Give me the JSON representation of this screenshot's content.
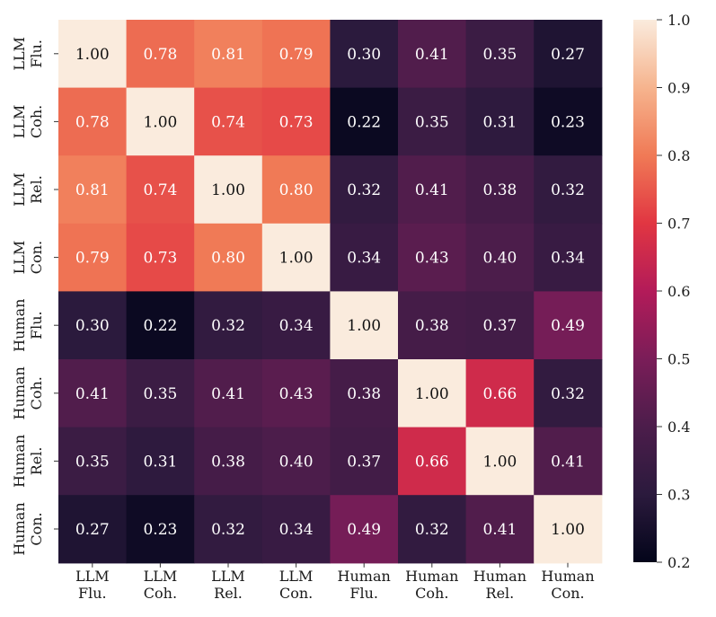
{
  "chart_data": {
    "type": "heatmap",
    "title": "",
    "xlabel": "",
    "ylabel": "",
    "row_labels": [
      [
        "LLM",
        "Flu."
      ],
      [
        "LLM",
        "Coh."
      ],
      [
        "LLM",
        "Rel."
      ],
      [
        "LLM",
        "Con."
      ],
      [
        "Human",
        "Flu."
      ],
      [
        "Human",
        "Coh."
      ],
      [
        "Human",
        "Rel."
      ],
      [
        "Human",
        "Con."
      ]
    ],
    "col_labels": [
      [
        "LLM",
        "Flu."
      ],
      [
        "LLM",
        "Coh."
      ],
      [
        "LLM",
        "Rel."
      ],
      [
        "LLM",
        "Con."
      ],
      [
        "Human",
        "Flu."
      ],
      [
        "Human",
        "Coh."
      ],
      [
        "Human",
        "Rel."
      ],
      [
        "Human",
        "Con."
      ]
    ],
    "values": [
      [
        1.0,
        0.78,
        0.81,
        0.79,
        0.3,
        0.41,
        0.35,
        0.27
      ],
      [
        0.78,
        1.0,
        0.74,
        0.73,
        0.22,
        0.35,
        0.31,
        0.23
      ],
      [
        0.81,
        0.74,
        1.0,
        0.8,
        0.32,
        0.41,
        0.38,
        0.32
      ],
      [
        0.79,
        0.73,
        0.8,
        1.0,
        0.34,
        0.43,
        0.4,
        0.34
      ],
      [
        0.3,
        0.22,
        0.32,
        0.34,
        1.0,
        0.38,
        0.37,
        0.49
      ],
      [
        0.41,
        0.35,
        0.41,
        0.43,
        0.38,
        1.0,
        0.66,
        0.32
      ],
      [
        0.35,
        0.31,
        0.38,
        0.4,
        0.37,
        0.66,
        1.0,
        0.41
      ],
      [
        0.27,
        0.23,
        0.32,
        0.34,
        0.49,
        0.32,
        0.41,
        1.0
      ]
    ],
    "value_format": "2 decimals",
    "colorbar": {
      "range": [
        0.2,
        1.0
      ],
      "ticks": [
        "0.2",
        "0.3",
        "0.4",
        "0.5",
        "0.6",
        "0.7",
        "0.8",
        "0.9",
        "1.0"
      ],
      "colormap": "rocket"
    },
    "colors": {
      "text_dark_cell": "#ffffff",
      "text_light_cell": "#111111"
    }
  }
}
